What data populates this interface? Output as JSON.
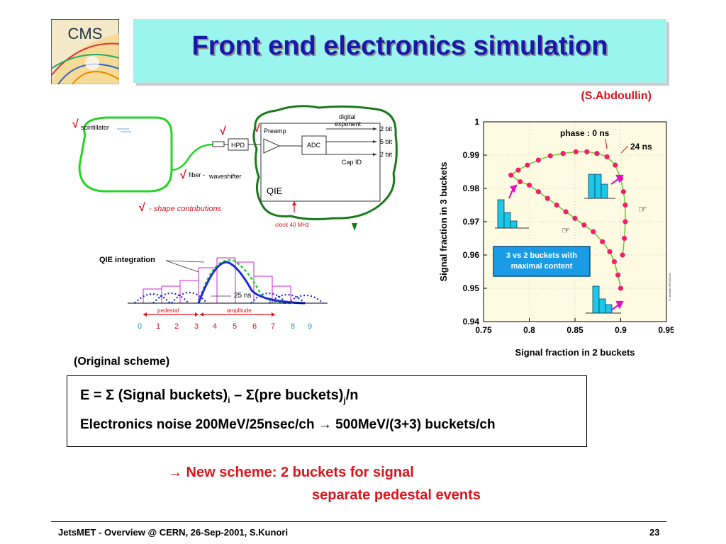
{
  "logo": {
    "text": "CMS"
  },
  "title": "Front end electronics simulation",
  "author": "(S.Abdoullin)",
  "top_diagram": {
    "check": "√",
    "scintillator": "scintillator",
    "fiber": "fiber -",
    "waveshifter": "waveshifter",
    "hpd": "HPD",
    "preamp": "Preamp",
    "adc": "ADC",
    "qie": "QIE",
    "digital_exponent_1": "digital",
    "digital_exponent_2": "exponent",
    "bits_1": "2 bit",
    "bits_2": "5 bit",
    "bits_3": "2 bit",
    "cap_id": "Cap  ID",
    "clock": "clock 40 MHz",
    "shape_contributions": "- shape  contributions"
  },
  "qie_diagram": {
    "title": "QIE  integration",
    "ns_label": "25 ns",
    "pedestal": "pedestal",
    "amplitude": "amplitude",
    "buckets": [
      "0",
      "1",
      "2",
      "3",
      "4",
      "5",
      "6",
      "7",
      "8",
      "9"
    ]
  },
  "chart_data": {
    "type": "scatter",
    "xlabel": "Signal fraction in 2 buckets",
    "ylabel": "Signal fraction in 3 buckets",
    "xlim": [
      0.75,
      0.95
    ],
    "ylim": [
      0.94,
      1.0
    ],
    "x_ticks": [
      "0.75",
      "0.8",
      "0.85",
      "0.9",
      "0.95"
    ],
    "y_ticks": [
      "0.94",
      "0.95",
      "0.96",
      "0.97",
      "0.98",
      "0.99",
      "1"
    ],
    "annotations": {
      "phase_start": "phase :   0 ns",
      "phase_end": "24 ns",
      "callout_1": "3 vs 2 buckets  with",
      "callout_2": "maximal  content",
      "credit": "S. Abdullin  09/02/2001"
    },
    "series": [
      {
        "x": [
          0.9,
          0.897,
          0.893,
          0.888,
          0.88,
          0.87,
          0.86,
          0.85,
          0.84,
          0.83,
          0.82,
          0.81,
          0.8,
          0.79,
          0.78,
          0.788,
          0.798,
          0.81,
          0.823,
          0.837,
          0.851,
          0.863,
          0.874,
          0.885,
          0.894,
          0.9,
          0.903,
          0.905,
          0.905,
          0.904,
          0.902
        ],
        "y": [
          0.95,
          0.954,
          0.958,
          0.961,
          0.964,
          0.967,
          0.969,
          0.971,
          0.973,
          0.975,
          0.977,
          0.979,
          0.981,
          0.982,
          0.984,
          0.9855,
          0.987,
          0.9885,
          0.9898,
          0.9905,
          0.991,
          0.991,
          0.9905,
          0.9895,
          0.987,
          0.983,
          0.979,
          0.975,
          0.97,
          0.965,
          0.96
        ]
      }
    ]
  },
  "original_scheme_label": "(Original scheme)",
  "formula": {
    "e_eq": "E = ",
    "sigma1": "Σ",
    "signal": " (Signal buckets)",
    "sub_i1": "i",
    "minus": " – ",
    "sigma2": "Σ",
    "pre": "(pre buckets)",
    "sub_j": "j",
    "over_n": "/n"
  },
  "noise": {
    "part1": "Electronics noise 200MeV/25nsec/ch ",
    "arrow": "→",
    "part2": " 500MeV/(3+3) buckets/ch"
  },
  "new_scheme": {
    "arrow": "→",
    "line1": " New scheme: 2 buckets for signal",
    "line2": "separate pedestal events"
  },
  "footer": {
    "text": "JetsMET - Overview @ CERN, 26-Sep-2001, S.Kunori",
    "page": "23"
  }
}
